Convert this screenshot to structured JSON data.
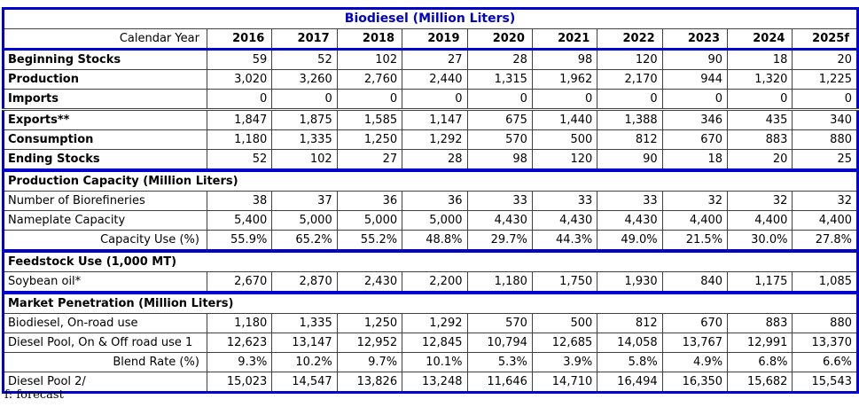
{
  "title": "Biodiesel (Million Liters)",
  "corner_label": "Calendar Year",
  "years": [
    "2016",
    "2017",
    "2018",
    "2019",
    "2020",
    "2021",
    "2022",
    "2023",
    "2024",
    "2025f"
  ],
  "footnote": "f: forecast",
  "colors": {
    "accent_blue": "#0000CC",
    "grid_line": "#404040",
    "background": "#FFFFFF"
  },
  "sections": [
    {
      "header": null,
      "rows": [
        {
          "label": "Beginning Stocks",
          "bold": true,
          "values": [
            "59",
            "52",
            "102",
            "27",
            "28",
            "98",
            "120",
            "90",
            "18",
            "20"
          ]
        },
        {
          "label": "Production",
          "bold": true,
          "values": [
            "3,020",
            "3,260",
            "2,760",
            "2,440",
            "1,315",
            "1,962",
            "2,170",
            "944",
            "1,320",
            "1,225"
          ]
        },
        {
          "label": "Imports",
          "bold": true,
          "values": [
            "0",
            "0",
            "0",
            "0",
            "0",
            "0",
            "0",
            "0",
            "0",
            "0"
          ]
        },
        {
          "label": "Exports**",
          "bold": true,
          "divider_above": true,
          "values": [
            "1,847",
            "1,875",
            "1,585",
            "1,147",
            "675",
            "1,440",
            "1,388",
            "346",
            "435",
            "340"
          ]
        },
        {
          "label": "Consumption",
          "bold": true,
          "values": [
            "1,180",
            "1,335",
            "1,250",
            "1,292",
            "570",
            "500",
            "812",
            "670",
            "883",
            "880"
          ]
        },
        {
          "label": "Ending Stocks",
          "bold": true,
          "values": [
            "52",
            "102",
            "27",
            "28",
            "98",
            "120",
            "90",
            "18",
            "20",
            "25"
          ]
        }
      ]
    },
    {
      "header": "Production Capacity (Million Liters)",
      "rows": [
        {
          "label": "Number of Biorefineries",
          "values": [
            "38",
            "37",
            "36",
            "36",
            "33",
            "33",
            "33",
            "32",
            "32",
            "32"
          ]
        },
        {
          "label": "Nameplate Capacity",
          "values": [
            "5,400",
            "5,000",
            "5,000",
            "5,000",
            "4,430",
            "4,430",
            "4,430",
            "4,400",
            "4,400",
            "4,400"
          ]
        },
        {
          "label": "Capacity Use (%)",
          "label_align": "right",
          "values": [
            "55.9%",
            "65.2%",
            "55.2%",
            "48.8%",
            "29.7%",
            "44.3%",
            "49.0%",
            "21.5%",
            "30.0%",
            "27.8%"
          ]
        }
      ]
    },
    {
      "header": "Feedstock Use (1,000 MT)",
      "rows": [
        {
          "label": "Soybean oil*",
          "values": [
            "2,670",
            "2,870",
            "2,430",
            "2,200",
            "1,180",
            "1,750",
            "1,930",
            "840",
            "1,175",
            "1,085"
          ]
        }
      ]
    },
    {
      "header": "Market Penetration (Million Liters)",
      "rows": [
        {
          "label": "Biodiesel, On-road use",
          "values": [
            "1,180",
            "1,335",
            "1,250",
            "1,292",
            "570",
            "500",
            "812",
            "670",
            "883",
            "880"
          ]
        },
        {
          "label": "Diesel Pool, On & Off road use 1",
          "values": [
            "12,623",
            "13,147",
            "12,952",
            "12,845",
            "10,794",
            "12,685",
            "14,058",
            "13,767",
            "12,991",
            "13,370"
          ]
        },
        {
          "label": "Blend Rate (%)",
          "label_align": "right",
          "values": [
            "9.3%",
            "10.2%",
            "9.7%",
            "10.1%",
            "5.3%",
            "3.9%",
            "5.8%",
            "4.9%",
            "6.8%",
            "6.6%"
          ]
        },
        {
          "label": "Diesel Pool 2/",
          "values": [
            "15,023",
            "14,547",
            "13,826",
            "13,248",
            "11,646",
            "14,710",
            "16,494",
            "16,350",
            "15,682",
            "15,543"
          ]
        }
      ]
    }
  ]
}
